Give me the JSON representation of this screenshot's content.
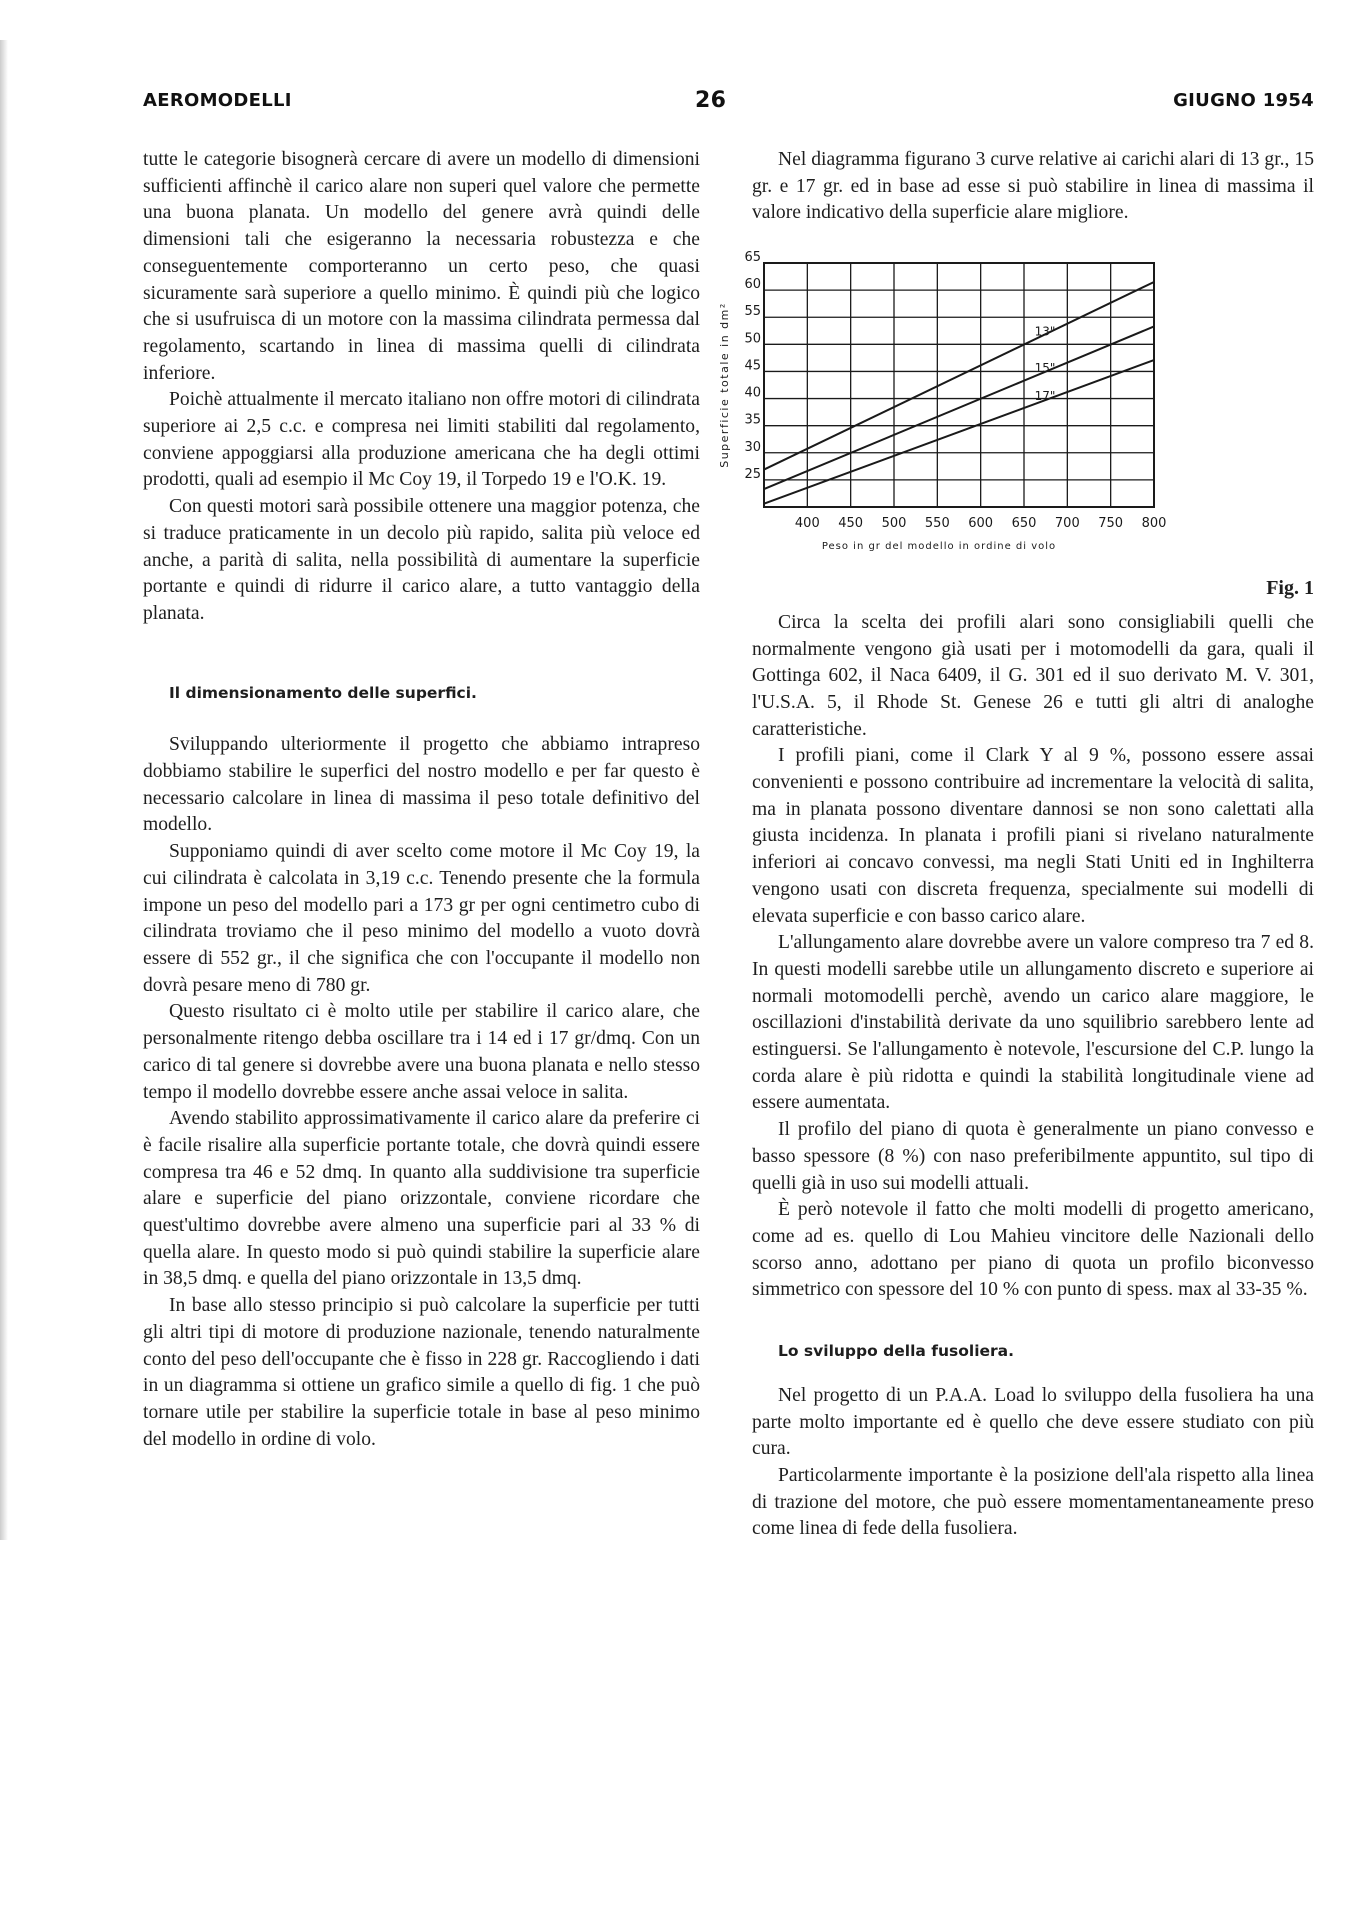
{
  "header": {
    "magazine": "AEROMODELLI",
    "page_number": "26",
    "date": "GIUGNO 1954"
  },
  "left_column": {
    "p1": "tutte le categorie bisognerà cercare di avere un modello di dimensioni sufficienti affinchè il carico alare non superi quel valore che permette una buona planata. Un modello del genere avrà quindi delle dimensioni tali che esigeranno la necessaria robustezza e che conseguentemente comporteranno un certo peso, che quasi sicuramente sarà superiore a quello minimo. È quindi più che logico che si usufruisca di un motore con la massima cilindrata permessa dal regolamento, scartando in linea di massima quelli di cilindrata inferiore.",
    "p2": "Poichè attualmente il mercato italiano non offre motori di cilindrata superiore ai 2,5 c.c. e compresa nei limiti stabiliti dal regolamento, conviene appoggiarsi alla produzione americana che ha degli ottimi prodotti, quali ad esempio il Mc Coy 19, il Torpedo 19 e l'O.K. 19.",
    "p3": "Con questi motori sarà possibile ottenere una maggior potenza, che si traduce praticamente in un decolo più rapido, salita più veloce ed anche, a parità di salita, nella possibilità di aumentare la superficie portante e quindi di ridurre il carico alare, a tutto vantaggio della planata.",
    "section_title": "Il dimensionamento delle superfici.",
    "p4": "Sviluppando ulteriormente il progetto che abbiamo intrapreso dobbiamo stabilire le superfici del nostro modello e per far questo è necessario calcolare in linea di massima il peso totale definitivo del modello.",
    "p5": "Supponiamo quindi di aver scelto come motore il Mc Coy 19, la cui cilindrata è calcolata in 3,19 c.c. Tenendo presente che la formula impone un peso del modello pari a 173 gr per ogni centimetro cubo di cilindrata troviamo che il peso minimo del modello a vuoto dovrà essere di 552 gr., il che significa che con l'occupante il modello non dovrà pesare meno di 780 gr.",
    "p6": "Questo risultato ci è molto utile per stabilire il carico alare, che personalmente ritengo debba oscillare tra i 14 ed i 17 gr/dmq. Con un carico di tal genere si dovrebbe avere una buona planata e nello stesso tempo il modello dovrebbe essere anche assai veloce in salita.",
    "p7": "Avendo stabilito approssimativamente il carico alare da preferire ci è facile risalire alla superficie portante totale, che dovrà quindi essere compresa tra 46 e 52 dmq. In quanto alla suddivisione tra superficie alare e superficie del piano orizzontale, conviene ricordare che quest'ultimo dovrebbe avere almeno una superficie pari al 33 % di quella alare. In questo modo si può quindi stabilire la superficie alare in 38,5 dmq. e quella del piano orizzontale in 13,5 dmq.",
    "p8": "In base allo stesso principio si può calcolare la superficie per tutti gli altri tipi di motore di produzione nazionale, tenendo naturalmente conto del peso dell'occupante che è fisso in 228 gr. Raccogliendo i dati in un diagramma si ottiene un grafico simile a quello di fig. 1 che può tornare utile per stabilire la superficie totale in base al peso minimo del modello in ordine di volo."
  },
  "right_column": {
    "p1": "Nel diagramma figurano 3 curve relative ai carichi alari di 13 gr., 15 gr. e 17 gr. ed in base ad esse si può stabilire in linea di massima il valore indicativo della superficie alare migliore.",
    "figure_caption": "Fig. 1",
    "p2": "Circa la scelta dei profili alari sono consigliabili quelli che normalmente vengono già usati per i motomodelli da gara, quali il Gottinga 602, il Naca 6409, il G. 301 ed il suo derivato M. V. 301, l'U.S.A. 5, il Rhode St. Genese 26 e tutti gli altri di analoghe caratteristiche.",
    "p3": "I profili piani, come il Clark Y al 9 %, possono essere assai convenienti e possono contribuire ad incrementare la velocità di salita, ma in planata possono diventare dannosi se non sono calettati alla giusta incidenza. In planata i profili piani si rivelano naturalmente inferiori ai concavo convessi, ma negli Stati Uniti ed in Inghilterra vengono usati con discreta frequenza, specialmente sui modelli di elevata superficie e con basso carico alare.",
    "p4": "L'allungamento alare dovrebbe avere un valore compreso tra 7 ed 8. In questi modelli sarebbe utile un allungamento discreto e superiore ai normali motomodelli perchè, avendo un carico alare maggiore, le oscillazioni d'instabilità derivate da uno squilibrio sarebbero lente ad estinguersi. Se l'allungamento è notevole, l'escursione del C.P. lungo la corda alare è più ridotta e quindi la stabilità longitudinale viene ad essere aumentata.",
    "p5": "Il profilo del piano di quota è generalmente un piano convesso e basso spessore (8 %) con naso preferibilmente appuntito, sul tipo di quelli già in uso sui modelli attuali.",
    "p6": "È però notevole il fatto che molti modelli di progetto americano, come ad es. quello di Lou Mahieu vincitore delle Nazionali dello scorso anno, adottano per piano di quota un profilo biconvesso simmetrico con spessore del 10 % con punto di spess. max al 33-35 %.",
    "section_title": "Lo sviluppo della fusoliera.",
    "p7": "Nel progetto di un P.A.A. Load lo sviluppo della fusoliera ha una parte molto importante ed è quello che deve essere studiato con più cura.",
    "p8": "Particolarmente importante è la posizione dell'ala rispetto alla linea di trazione del motore, che può essere momentamentaneamente preso come linea di fede della fusoliera."
  },
  "chart_data": {
    "type": "line",
    "xlabel": "Peso in gr del modello in ordine di volo",
    "ylabel": "Superficie totale in dm²",
    "xlim": [
      350,
      800
    ],
    "ylim": [
      20,
      65
    ],
    "x_ticks": [
      "400",
      "450",
      "500",
      "550",
      "600",
      "650",
      "700",
      "750",
      "800"
    ],
    "y_ticks": [
      "25",
      "30",
      "35",
      "40",
      "45",
      "50",
      "55",
      "60",
      "65"
    ],
    "grid": true,
    "line_color": "#1a1a1a",
    "series": [
      {
        "name": "13\"",
        "x": [
          350,
          800
        ],
        "y": [
          26.9,
          61.5
        ]
      },
      {
        "name": "15\"",
        "x": [
          350,
          800
        ],
        "y": [
          23.3,
          53.3
        ]
      },
      {
        "name": "17\"",
        "x": [
          350,
          800
        ],
        "y": [
          20.6,
          47.1
        ]
      }
    ]
  }
}
